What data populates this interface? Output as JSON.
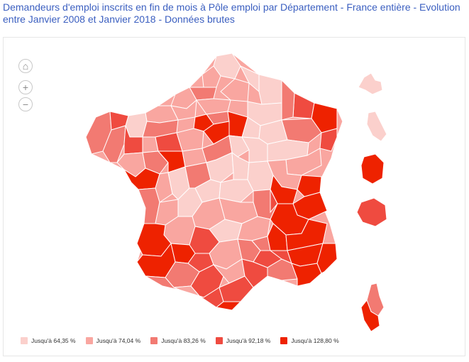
{
  "title": "Demandeurs d'emploi inscrits en fin de mois à Pôle emploi par Département - France entière - Evolution entre Janvier 2008 et Janvier 2018 - Données brutes",
  "controls": {
    "home_icon": "home-icon",
    "zoom_in_icon": "plus-icon",
    "zoom_out_icon": "minus-icon",
    "home_glyph": "⌂",
    "plus_glyph": "+",
    "minus_glyph": "−"
  },
  "legend": [
    {
      "label": "Jusqu'à 64,35 %",
      "color": "#fbd0cc"
    },
    {
      "label": "Jusqu'à 74,04 %",
      "color": "#f9a6a0"
    },
    {
      "label": "Jusqu'à 83,26 %",
      "color": "#f27a72"
    },
    {
      "label": "Jusqu'à 92,18 %",
      "color": "#ef4b40"
    },
    {
      "label": "Jusqu'à 128,80 %",
      "color": "#ee2200"
    }
  ]
}
